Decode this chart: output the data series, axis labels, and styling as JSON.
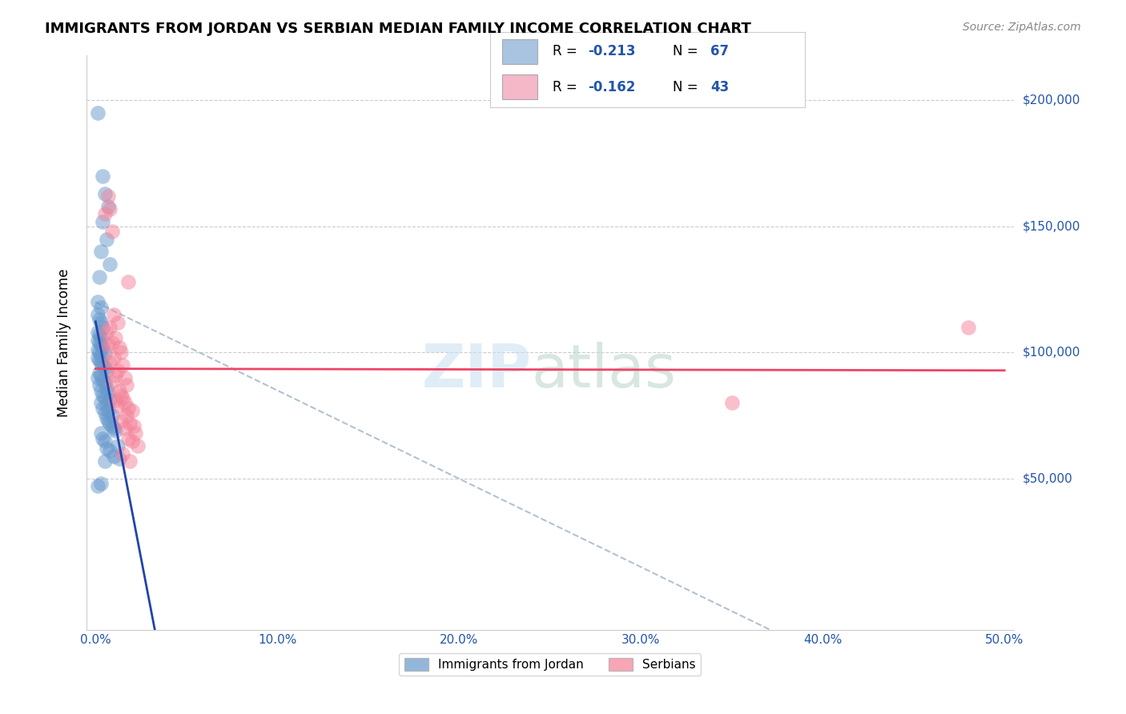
{
  "title": "IMMIGRANTS FROM JORDAN VS SERBIAN MEDIAN FAMILY INCOME CORRELATION CHART",
  "source": "Source: ZipAtlas.com",
  "ylabel": "Median Family Income",
  "series1_color": "#6699cc",
  "series2_color": "#f48098",
  "trendline1_color": "#2244aa",
  "trendline2_color": "#ee4466",
  "dashed_line_color": "#aabbcc",
  "legend1_color": "#a8c4e0",
  "legend2_color": "#f4b8c8",
  "r1": "-0.213",
  "n1": "67",
  "r2": "-0.162",
  "n2": "43",
  "label1": "Immigrants from Jordan",
  "label2": "Serbians",
  "jordan_points": [
    [
      0.001,
      195000
    ],
    [
      0.004,
      170000
    ],
    [
      0.005,
      163000
    ],
    [
      0.007,
      158000
    ],
    [
      0.004,
      152000
    ],
    [
      0.006,
      145000
    ],
    [
      0.003,
      140000
    ],
    [
      0.008,
      135000
    ],
    [
      0.002,
      130000
    ],
    [
      0.001,
      120000
    ],
    [
      0.003,
      118000
    ],
    [
      0.001,
      115000
    ],
    [
      0.002,
      113000
    ],
    [
      0.003,
      112000
    ],
    [
      0.004,
      110000
    ],
    [
      0.001,
      108000
    ],
    [
      0.002,
      107000
    ],
    [
      0.003,
      106000
    ],
    [
      0.001,
      105000
    ],
    [
      0.002,
      104000
    ],
    [
      0.003,
      103000
    ],
    [
      0.004,
      102000
    ],
    [
      0.001,
      101000
    ],
    [
      0.002,
      100000
    ],
    [
      0.003,
      99000
    ],
    [
      0.005,
      99500
    ],
    [
      0.001,
      98000
    ],
    [
      0.002,
      97000
    ],
    [
      0.003,
      96000
    ],
    [
      0.004,
      95000
    ],
    [
      0.005,
      94000
    ],
    [
      0.006,
      93000
    ],
    [
      0.002,
      92000
    ],
    [
      0.003,
      91000
    ],
    [
      0.001,
      90000
    ],
    [
      0.004,
      89000
    ],
    [
      0.005,
      88000
    ],
    [
      0.002,
      87000
    ],
    [
      0.006,
      86000
    ],
    [
      0.003,
      85000
    ],
    [
      0.007,
      84000
    ],
    [
      0.004,
      83000
    ],
    [
      0.005,
      82000
    ],
    [
      0.008,
      81000
    ],
    [
      0.003,
      80000
    ],
    [
      0.006,
      79500
    ],
    [
      0.004,
      78000
    ],
    [
      0.007,
      77000
    ],
    [
      0.005,
      76000
    ],
    [
      0.009,
      75000
    ],
    [
      0.006,
      74000
    ],
    [
      0.007,
      73000
    ],
    [
      0.008,
      72000
    ],
    [
      0.009,
      71000
    ],
    [
      0.01,
      70000
    ],
    [
      0.011,
      69000
    ],
    [
      0.003,
      68000
    ],
    [
      0.004,
      66000
    ],
    [
      0.005,
      65000
    ],
    [
      0.012,
      63000
    ],
    [
      0.006,
      62000
    ],
    [
      0.008,
      61000
    ],
    [
      0.01,
      59000
    ],
    [
      0.013,
      58000
    ],
    [
      0.005,
      57000
    ],
    [
      0.003,
      48000
    ],
    [
      0.001,
      47000
    ]
  ],
  "serbian_points": [
    [
      0.007,
      162000
    ],
    [
      0.008,
      157000
    ],
    [
      0.005,
      155000
    ],
    [
      0.009,
      148000
    ],
    [
      0.018,
      128000
    ],
    [
      0.01,
      115000
    ],
    [
      0.012,
      112000
    ],
    [
      0.008,
      110000
    ],
    [
      0.006,
      108000
    ],
    [
      0.011,
      106000
    ],
    [
      0.009,
      104000
    ],
    [
      0.007,
      103000
    ],
    [
      0.013,
      102000
    ],
    [
      0.014,
      100000
    ],
    [
      0.01,
      98000
    ],
    [
      0.008,
      96000
    ],
    [
      0.015,
      95000
    ],
    [
      0.012,
      93000
    ],
    [
      0.011,
      91000
    ],
    [
      0.016,
      90000
    ],
    [
      0.009,
      88000
    ],
    [
      0.017,
      87000
    ],
    [
      0.013,
      85000
    ],
    [
      0.014,
      83000
    ],
    [
      0.015,
      82000
    ],
    [
      0.011,
      81000
    ],
    [
      0.016,
      80000
    ],
    [
      0.012,
      79000
    ],
    [
      0.018,
      78000
    ],
    [
      0.02,
      77000
    ],
    [
      0.017,
      75000
    ],
    [
      0.014,
      73000
    ],
    [
      0.019,
      72000
    ],
    [
      0.021,
      71000
    ],
    [
      0.016,
      70000
    ],
    [
      0.022,
      68000
    ],
    [
      0.018,
      66000
    ],
    [
      0.02,
      65000
    ],
    [
      0.023,
      63000
    ],
    [
      0.015,
      60000
    ],
    [
      0.019,
      57000
    ],
    [
      0.48,
      110000
    ],
    [
      0.35,
      80000
    ]
  ]
}
